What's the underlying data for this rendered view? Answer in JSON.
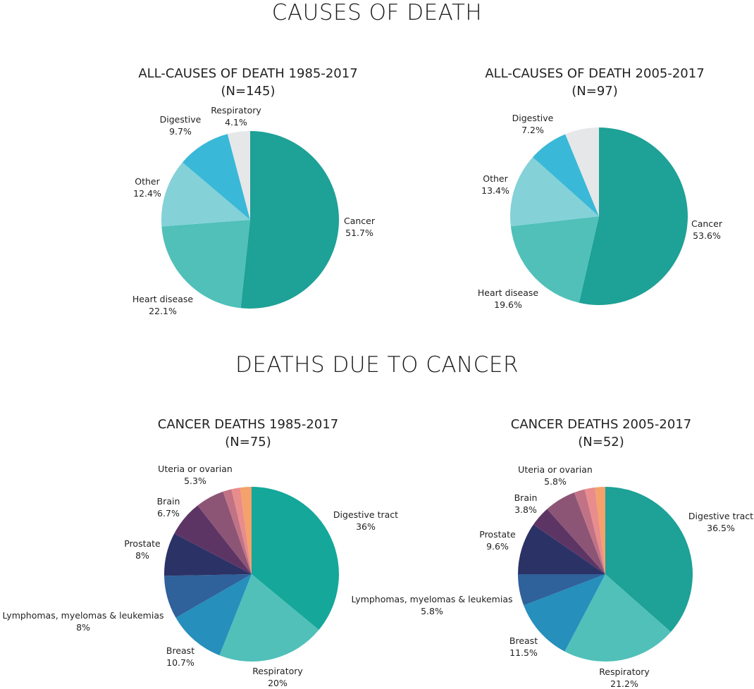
{
  "headings": {
    "causes": "CAUSES OF DEATH",
    "cancer": "DEATHS DUE TO CANCER"
  },
  "chart_data": [
    {
      "type": "pie",
      "title": "ALL-CAUSES OF DEATH 1985-2017",
      "subtitle": "(N=145)",
      "slices": [
        {
          "label": "Cancer",
          "pct_text": "51.7%",
          "value": 51.7,
          "color": "#1ea197"
        },
        {
          "label": "Heart disease",
          "pct_text": "22.1%",
          "value": 22.1,
          "color": "#50c0b9"
        },
        {
          "label": "Other",
          "pct_text": "12.4%",
          "value": 12.4,
          "color": "#84d1d8"
        },
        {
          "label": "Digestive",
          "pct_text": "9.7%",
          "value": 9.7,
          "color": "#3ab8d7"
        },
        {
          "label": "Respiratory",
          "pct_text": "4.1%",
          "value": 4.1,
          "color": "#e6e7e8"
        }
      ]
    },
    {
      "type": "pie",
      "title": "ALL-CAUSES OF DEATH 2005-2017",
      "subtitle": "(N=97)",
      "slices": [
        {
          "label": "Cancer",
          "pct_text": "53.6%",
          "value": 53.6,
          "color": "#1ea197"
        },
        {
          "label": "Heart disease",
          "pct_text": "19.6%",
          "value": 19.6,
          "color": "#50c0b9"
        },
        {
          "label": "Other",
          "pct_text": "13.4%",
          "value": 13.4,
          "color": "#84d1d8"
        },
        {
          "label": "Digestive",
          "pct_text": "7.2%",
          "value": 7.2,
          "color": "#3ab8d7"
        },
        {
          "label": "",
          "pct_text": "",
          "value": 6.2,
          "color": "#e6e7e8"
        }
      ]
    },
    {
      "type": "pie",
      "title": "CANCER DEATHS 1985-2017",
      "subtitle": "(N=75)",
      "slices": [
        {
          "label": "Digestive tract",
          "pct_text": "36%",
          "value": 36,
          "color": "#14a79a"
        },
        {
          "label": "Respiratory",
          "pct_text": "20%",
          "value": 20,
          "color": "#50c0b9"
        },
        {
          "label": "Breast",
          "pct_text": "10.7%",
          "value": 10.7,
          "color": "#268fbc"
        },
        {
          "label": "Lymphomas, myelomas & leukemias",
          "pct_text": "8%",
          "value": 8,
          "color": "#2f619a"
        },
        {
          "label": "Prostate",
          "pct_text": "8%",
          "value": 8,
          "color": "#2b3266"
        },
        {
          "label": "Brain",
          "pct_text": "6.7%",
          "value": 6.7,
          "color": "#5d3565"
        },
        {
          "label": "Uteria or ovarian",
          "pct_text": "5.3%",
          "value": 5.3,
          "color": "#8d5575"
        },
        {
          "label": "",
          "pct_text": "",
          "value": 1.6,
          "color": "#c17385"
        },
        {
          "label": "",
          "pct_text": "",
          "value": 1.6,
          "color": "#e98c8c"
        },
        {
          "label": "",
          "pct_text": "",
          "value": 2.1,
          "color": "#f4a16b"
        }
      ]
    },
    {
      "type": "pie",
      "title": "CANCER DEATHS 2005-2017",
      "subtitle": "(N=52)",
      "slices": [
        {
          "label": "Digestive tract",
          "pct_text": "36.5%",
          "value": 36.5,
          "color": "#1ea197"
        },
        {
          "label": "Respiratory",
          "pct_text": "21.2%",
          "value": 21.2,
          "color": "#50c0b9"
        },
        {
          "label": "Breast",
          "pct_text": "11.5%",
          "value": 11.5,
          "color": "#268fbc"
        },
        {
          "label": "Lymphomas, myelomas & leukemias",
          "pct_text": "5.8%",
          "value": 5.8,
          "color": "#2f619a"
        },
        {
          "label": "Prostate",
          "pct_text": "9.6%",
          "value": 9.6,
          "color": "#2b3266"
        },
        {
          "label": "Brain",
          "pct_text": "3.8%",
          "value": 3.8,
          "color": "#5d3565"
        },
        {
          "label": "Uteria or ovarian",
          "pct_text": "5.8%",
          "value": 5.8,
          "color": "#8d5575"
        },
        {
          "label": "",
          "pct_text": "",
          "value": 2.0,
          "color": "#c17385"
        },
        {
          "label": "",
          "pct_text": "",
          "value": 1.9,
          "color": "#e98c8c"
        },
        {
          "label": "",
          "pct_text": "",
          "value": 1.9,
          "color": "#f4a16b"
        }
      ]
    }
  ]
}
